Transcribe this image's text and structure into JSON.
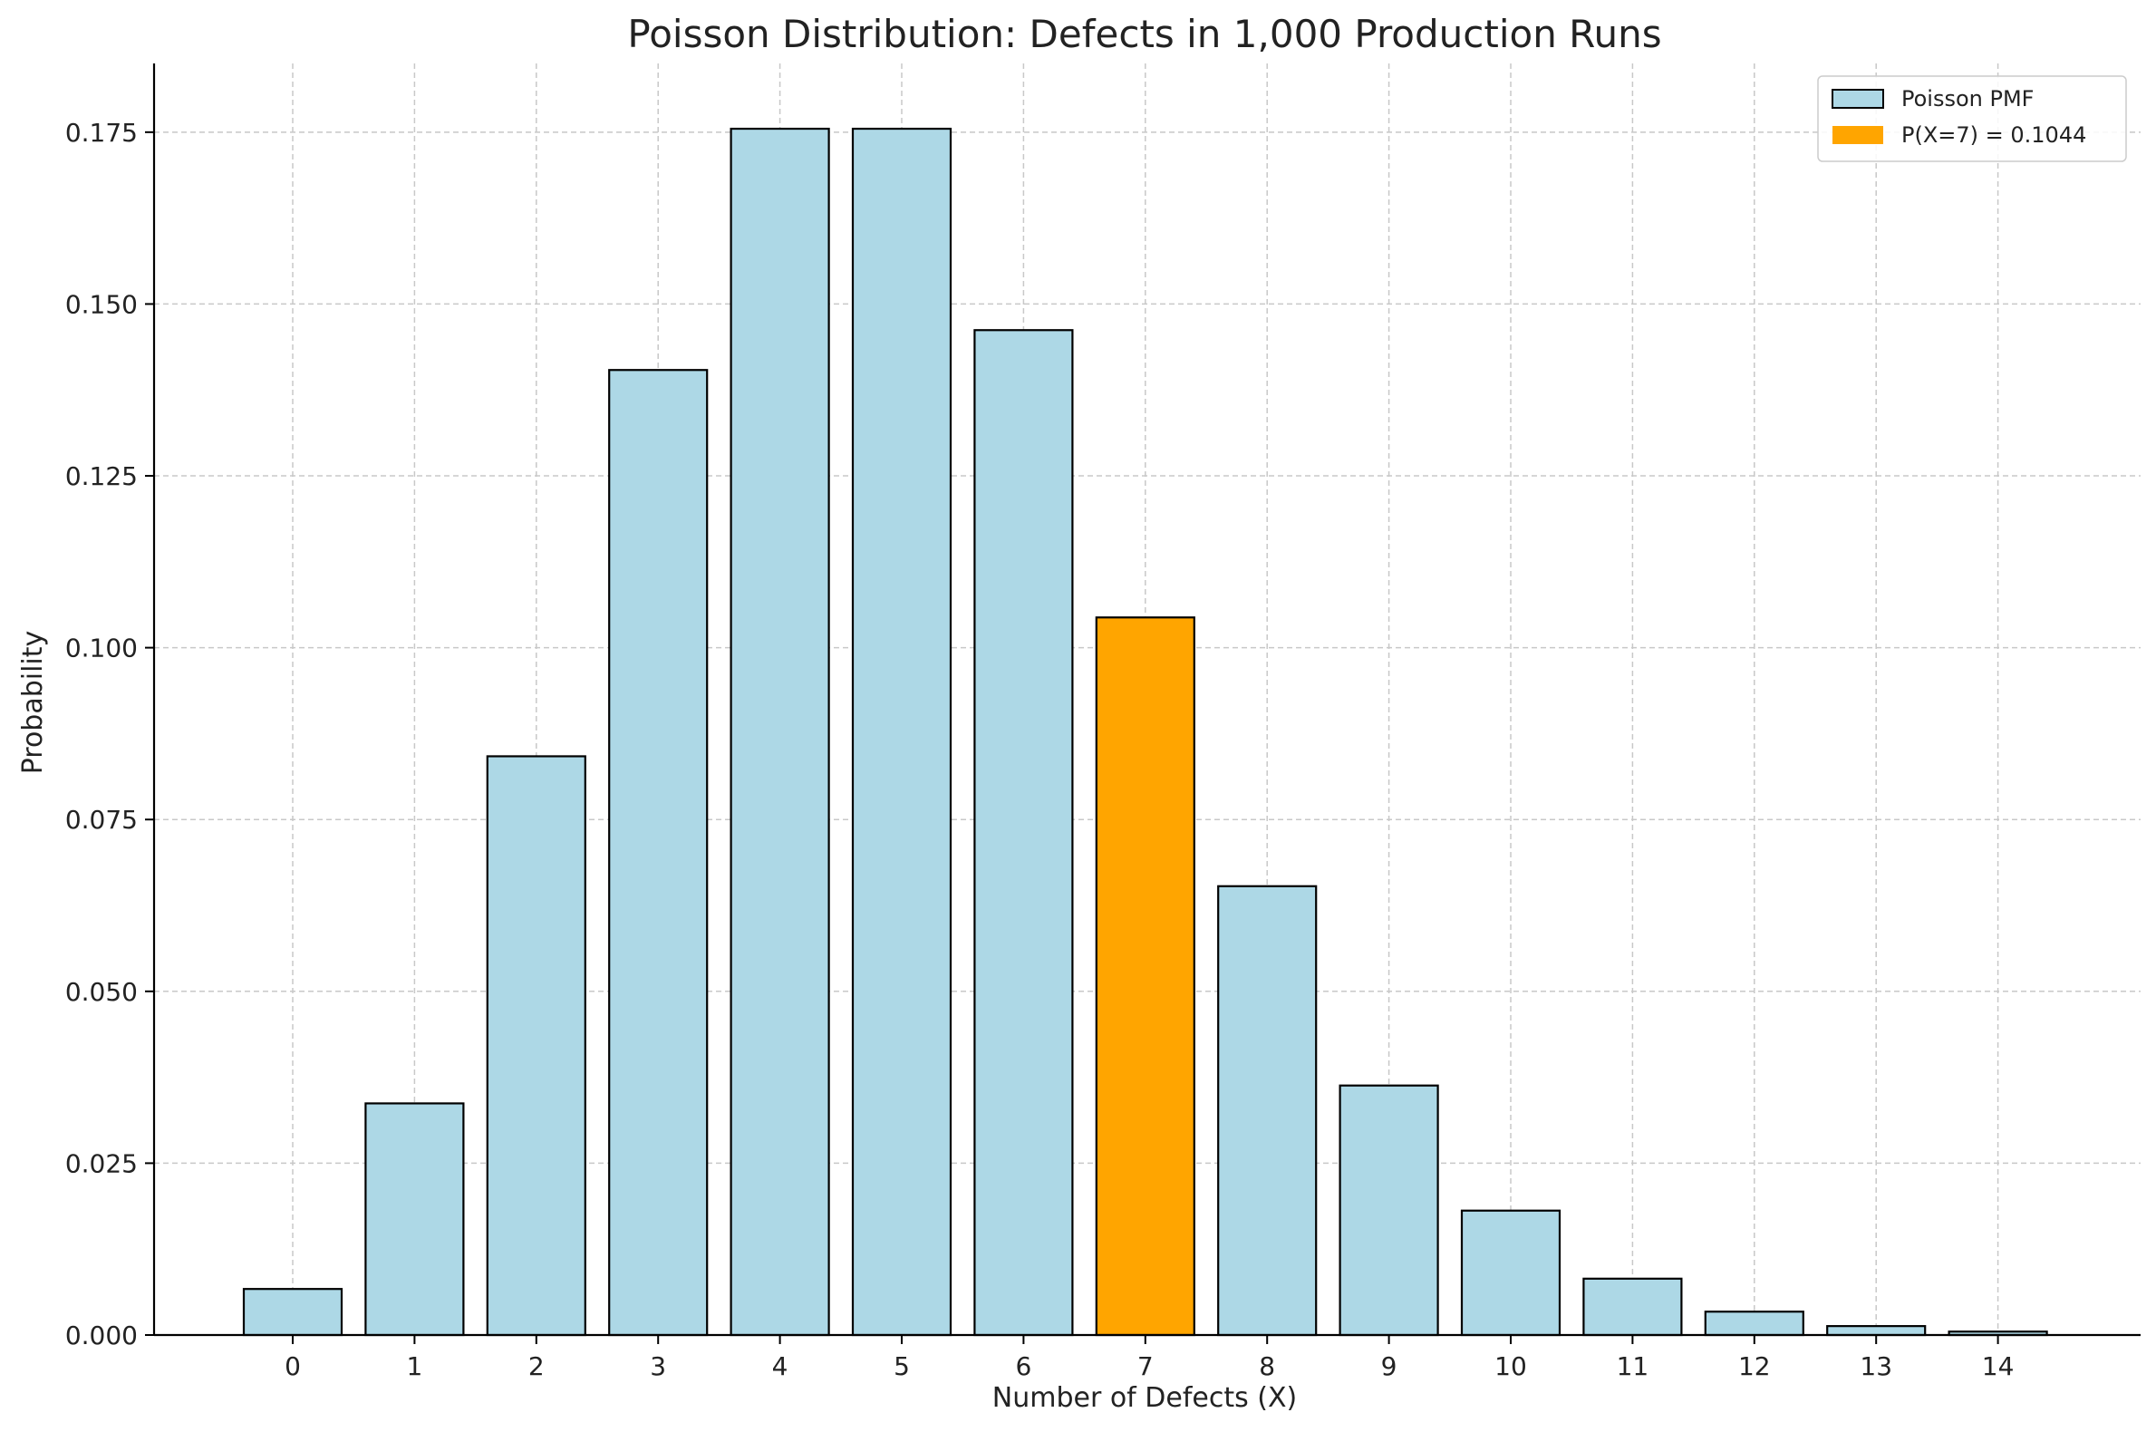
{
  "chart_data": {
    "type": "bar",
    "title": "Poisson Distribution: Defects in 1,000 Production Runs",
    "xlabel": "Number of Defects (X)",
    "ylabel": "Probability",
    "categories": [
      "0",
      "1",
      "2",
      "3",
      "4",
      "5",
      "6",
      "7",
      "8",
      "9",
      "10",
      "11",
      "12",
      "13",
      "14"
    ],
    "values": [
      0.0067,
      0.0337,
      0.0842,
      0.1404,
      0.1755,
      0.1755,
      0.1462,
      0.1044,
      0.0653,
      0.0363,
      0.0181,
      0.0082,
      0.0034,
      0.0013,
      0.0005
    ],
    "highlight_index": 7,
    "ylim": [
      0,
      0.185
    ],
    "yticks": [
      "0.000",
      "0.025",
      "0.050",
      "0.075",
      "0.100",
      "0.125",
      "0.150",
      "0.175"
    ],
    "grid": true,
    "grid_style": "dashed",
    "legend_position": "top-right",
    "legend": [
      {
        "label": "Poisson PMF",
        "color": "#add8e6",
        "edge": "#000000"
      },
      {
        "label": "P(X=7) = 0.1044",
        "color": "#ffa500",
        "edge": "none"
      }
    ],
    "colors": {
      "bar": "#add8e6",
      "highlight": "#ffa500",
      "bar_edge": "#000000",
      "grid": "#c8c8c8"
    }
  }
}
